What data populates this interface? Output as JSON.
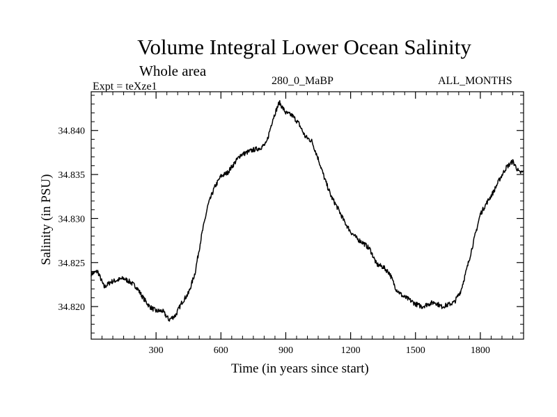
{
  "chart_data": {
    "type": "line",
    "title": "Volume Integral Lower Ocean Salinity",
    "subtitle": "Whole area",
    "annotations": {
      "experiment": "Expt = teXze1",
      "period": "280_0_MaBP",
      "months": "ALL_MONTHS"
    },
    "xlabel": "Time (in years since start)",
    "ylabel": "Salinity (in PSU)",
    "xlim": [
      0,
      2000
    ],
    "ylim": [
      34.8163,
      34.8444
    ],
    "xticks": [
      300,
      600,
      900,
      1200,
      1500,
      1800
    ],
    "xtick_labels": [
      "300",
      "600",
      "900",
      "1200",
      "1500",
      "1800"
    ],
    "yticks": [
      34.82,
      34.825,
      34.83,
      34.835,
      34.84
    ],
    "ytick_labels": [
      "34.820",
      "34.825",
      "34.830",
      "34.835",
      "34.840"
    ],
    "series": [
      {
        "name": "Salinity",
        "x": [
          0,
          30,
          60,
          90,
          120,
          150,
          180,
          210,
          240,
          270,
          300,
          330,
          360,
          390,
          420,
          450,
          480,
          510,
          540,
          570,
          600,
          630,
          660,
          690,
          720,
          750,
          780,
          810,
          840,
          870,
          900,
          930,
          960,
          990,
          1020,
          1050,
          1080,
          1110,
          1140,
          1170,
          1200,
          1230,
          1260,
          1290,
          1320,
          1350,
          1380,
          1410,
          1440,
          1470,
          1500,
          1530,
          1560,
          1590,
          1620,
          1650,
          1680,
          1710,
          1740,
          1770,
          1800,
          1830,
          1860,
          1890,
          1920,
          1950,
          1980,
          2000
        ],
        "y": [
          34.8237,
          34.824,
          34.8222,
          34.8228,
          34.823,
          34.8232,
          34.8228,
          34.8222,
          34.821,
          34.82,
          34.8195,
          34.8195,
          34.8185,
          34.819,
          34.8205,
          34.8215,
          34.8238,
          34.828,
          34.8315,
          34.8335,
          34.8348,
          34.8352,
          34.8362,
          34.8372,
          34.8375,
          34.8378,
          34.838,
          34.8385,
          34.8413,
          34.8432,
          34.842,
          34.8417,
          34.8408,
          34.8393,
          34.8388,
          34.8368,
          34.8345,
          34.8325,
          34.8312,
          34.8297,
          34.8285,
          34.8277,
          34.8272,
          34.8265,
          34.8248,
          34.8245,
          34.8238,
          34.822,
          34.8212,
          34.8208,
          34.8203,
          34.82,
          34.8203,
          34.8205,
          34.82,
          34.8202,
          34.8205,
          34.8218,
          34.8245,
          34.8275,
          34.8305,
          34.8318,
          34.833,
          34.8345,
          34.8358,
          34.8365,
          34.8352,
          34.8353
        ]
      }
    ]
  }
}
